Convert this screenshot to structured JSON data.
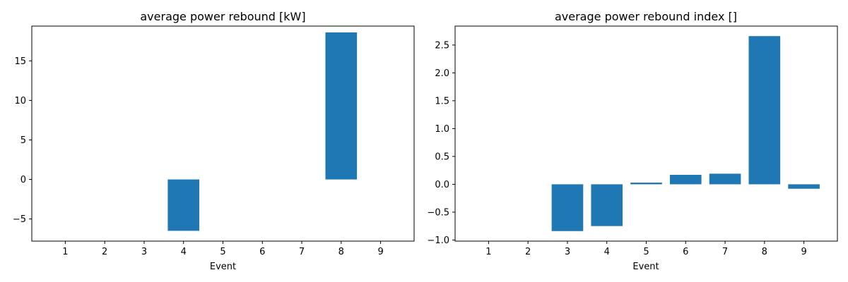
{
  "chart_data": [
    {
      "type": "bar",
      "title": "average power rebound [kW]",
      "xlabel": "Event",
      "ylabel": "",
      "categories": [
        "1",
        "2",
        "3",
        "4",
        "5",
        "6",
        "7",
        "8",
        "9"
      ],
      "x": [
        1,
        2,
        3,
        4,
        5,
        6,
        7,
        8,
        9
      ],
      "values": [
        0,
        0,
        0,
        -6.5,
        0,
        0,
        0,
        18.6,
        0
      ],
      "xlim": [
        0.15,
        9.85
      ],
      "ylim": [
        -7.8,
        19.4
      ],
      "yticks": [
        -5,
        0,
        5,
        10,
        15
      ],
      "ytick_labels": [
        "−5",
        "0",
        "5",
        "10",
        "15"
      ],
      "bar_color": "#1f77b4",
      "grid": false
    },
    {
      "type": "bar",
      "title": "average power rebound index []",
      "xlabel": "Event",
      "ylabel": "",
      "categories": [
        "1",
        "2",
        "3",
        "4",
        "5",
        "6",
        "7",
        "8",
        "9"
      ],
      "x": [
        1,
        2,
        3,
        4,
        5,
        6,
        7,
        8,
        9
      ],
      "values": [
        0,
        0,
        -0.84,
        -0.75,
        0.03,
        0.17,
        0.19,
        2.66,
        -0.08
      ],
      "xlim": [
        0.15,
        9.85
      ],
      "ylim": [
        -1.02,
        2.84
      ],
      "yticks": [
        -1.0,
        -0.5,
        0.0,
        0.5,
        1.0,
        1.5,
        2.0,
        2.5
      ],
      "ytick_labels": [
        "−1.0",
        "−0.5",
        "0.0",
        "0.5",
        "1.0",
        "1.5",
        "2.0",
        "2.5"
      ],
      "bar_color": "#1f77b4",
      "grid": false
    }
  ]
}
